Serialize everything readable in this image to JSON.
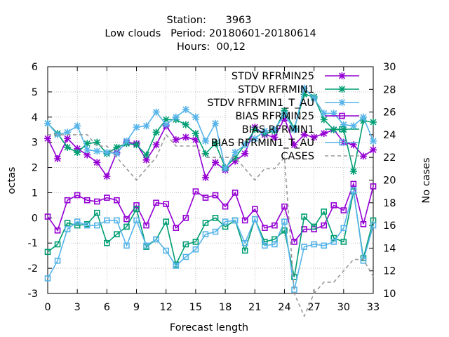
{
  "chart_data": {
    "type": "line",
    "title_lines": [
      "Station:      3963",
      "Low clouds   Period: 20180601-20180614",
      "Hours:  00,12"
    ],
    "xlabel": "Forecast length",
    "ylabel": "octas",
    "y2label": "No cases",
    "xlim": [
      0,
      33
    ],
    "ylim": [
      -3,
      6
    ],
    "y2lim": [
      10,
      30
    ],
    "xticks": [
      "0",
      "3",
      "6",
      "9",
      "12",
      "15",
      "18",
      "21",
      "24",
      "27",
      "30",
      "33"
    ],
    "yticks": [
      "-3",
      "-2",
      "-1",
      "0",
      "1",
      "2",
      "3",
      "4",
      "5",
      "6"
    ],
    "y2ticks": [
      "10",
      "12",
      "14",
      "16",
      "18",
      "20",
      "22",
      "24",
      "26",
      "28",
      "30"
    ],
    "legend_placement": "top-right",
    "x": [
      0,
      1,
      2,
      3,
      4,
      5,
      6,
      7,
      8,
      9,
      10,
      11,
      12,
      13,
      14,
      15,
      16,
      17,
      18,
      19,
      20,
      21,
      22,
      23,
      24,
      25,
      26,
      27,
      28,
      29,
      30,
      31,
      32,
      33
    ],
    "series": [
      {
        "name": "STDV RFRMIN25",
        "color": "#9400d3",
        "marker": "x",
        "axis": "y1",
        "values": [
          3.15,
          2.35,
          3.15,
          2.75,
          2.5,
          2.2,
          1.65,
          2.6,
          3.0,
          2.95,
          2.3,
          2.9,
          3.65,
          3.1,
          3.2,
          3.1,
          1.6,
          2.2,
          1.9,
          2.25,
          2.55,
          3.6,
          3.3,
          3.2,
          3.95,
          2.9,
          3.3,
          3.2,
          3.35,
          3.5,
          3.0,
          2.9,
          2.45,
          2.7
        ]
      },
      {
        "name": "STDV RFRMIN1",
        "color": "#009e73",
        "marker": "x",
        "axis": "y1",
        "values": [
          3.75,
          3.35,
          2.8,
          2.6,
          2.95,
          3.0,
          2.55,
          2.8,
          2.95,
          2.9,
          2.5,
          3.4,
          3.9,
          3.9,
          3.7,
          3.35,
          2.55,
          2.95,
          2.0,
          2.4,
          2.9,
          3.5,
          3.35,
          3.45,
          4.25,
          3.55,
          4.9,
          4.8,
          3.9,
          3.5,
          3.5,
          1.85,
          3.85,
          3.8
        ]
      },
      {
        "name": "STDV RFRMIN1_T_AU",
        "color": "#56b4e9",
        "marker": "x",
        "axis": "y1",
        "values": [
          3.75,
          3.3,
          3.4,
          3.65,
          2.7,
          2.65,
          2.6,
          2.55,
          3.05,
          3.6,
          3.65,
          4.2,
          3.7,
          4.0,
          4.3,
          4.0,
          3.05,
          3.75,
          1.95,
          2.6,
          2.9,
          3.15,
          3.45,
          3.5,
          4.1,
          3.5,
          5.15,
          4.75,
          4.15,
          4.15,
          3.7,
          3.65,
          4.0,
          3.05
        ]
      },
      {
        "name": "BIAS RFRMIN25",
        "color": "#9400d3",
        "marker": "square",
        "axis": "y1",
        "values": [
          0.05,
          -0.5,
          0.7,
          0.9,
          0.7,
          0.65,
          0.8,
          0.7,
          -0.05,
          0.5,
          -0.3,
          0.6,
          0.55,
          -0.4,
          0.0,
          1.05,
          0.8,
          0.9,
          0.45,
          1.0,
          -0.1,
          0.35,
          -0.4,
          -0.3,
          0.45,
          -0.95,
          -0.45,
          -0.45,
          -0.3,
          0.5,
          0.3,
          1.35,
          -0.25,
          1.25
        ]
      },
      {
        "name": "BIAS RFRMIN1",
        "color": "#009e73",
        "marker": "square",
        "axis": "y1",
        "values": [
          -1.35,
          -1.05,
          -0.2,
          -0.3,
          -0.25,
          0.2,
          -1.0,
          -0.65,
          -0.35,
          0.35,
          -1.15,
          -0.85,
          -0.15,
          -1.85,
          -1.05,
          -0.95,
          -0.2,
          0.0,
          -0.35,
          -0.1,
          -1.3,
          -0.05,
          -0.95,
          -0.85,
          -0.5,
          -2.35,
          0.05,
          -0.35,
          0.25,
          -0.8,
          -0.95,
          1.05,
          -1.6,
          -0.1
        ]
      },
      {
        "name": "BIAS RFRMIN1_T_AU",
        "color": "#56b4e9",
        "marker": "square",
        "axis": "y1",
        "values": [
          -2.4,
          -1.7,
          -0.45,
          -0.15,
          -0.3,
          -0.3,
          -0.1,
          -0.1,
          -1.1,
          -0.1,
          -1.1,
          -0.85,
          -1.3,
          -1.9,
          -1.55,
          -1.25,
          -0.65,
          -0.55,
          -0.15,
          -0.1,
          -1.0,
          -0.05,
          -1.1,
          -1.05,
          -0.15,
          -2.85,
          -1.15,
          -1.05,
          -1.1,
          -0.95,
          -0.4,
          1.1,
          -1.7,
          -0.3
        ]
      },
      {
        "name": "CASES",
        "color": "#999999",
        "marker": "none",
        "dashed": true,
        "axis": "y2",
        "values": [
          24,
          24,
          24,
          24,
          24,
          23,
          23,
          22,
          21,
          20,
          21,
          22,
          24,
          23,
          23,
          23,
          22,
          22,
          22,
          22,
          21,
          20,
          21,
          21,
          22,
          10,
          8,
          10,
          11,
          11,
          12,
          13,
          13,
          11.5
        ]
      }
    ]
  }
}
